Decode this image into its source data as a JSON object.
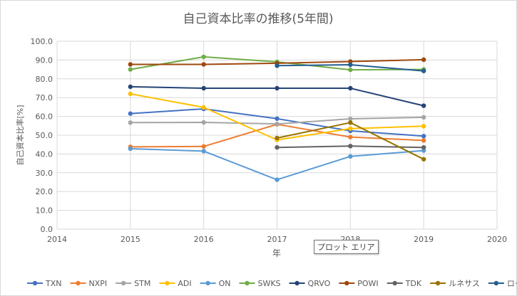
{
  "chart_data": {
    "type": "line",
    "title": "自己資本比率の推移(5年間)",
    "xlabel": "年",
    "ylabel": "自己資本比率[%]",
    "xlim": [
      2014,
      2020
    ],
    "ylim": [
      0,
      100
    ],
    "x_ticks": [
      "2014",
      "2015",
      "2016",
      "2017",
      "2018",
      "2019",
      "2020"
    ],
    "y_ticks": [
      "0.0",
      "10.0",
      "20.0",
      "30.0",
      "40.0",
      "50.0",
      "60.0",
      "70.0",
      "80.0",
      "90.0",
      "100.0"
    ],
    "grid": true,
    "legend_position": "bottom",
    "series": [
      {
        "name": "TXN",
        "color": "#4472c4",
        "x": [
          2015,
          2016,
          2017,
          2018,
          2019
        ],
        "y": [
          61.5,
          64.0,
          58.8,
          52.3,
          49.5
        ]
      },
      {
        "name": "NXPI",
        "color": "#ed7d31",
        "x": [
          2015,
          2016,
          2017,
          2018,
          2019
        ],
        "y": [
          43.8,
          44.0,
          55.8,
          49.0,
          47.2
        ]
      },
      {
        "name": "STM",
        "color": "#a5a5a5",
        "x": [
          2015,
          2016,
          2017,
          2018,
          2019
        ],
        "y": [
          56.7,
          56.8,
          56.0,
          58.7,
          59.5
        ]
      },
      {
        "name": "ADI",
        "color": "#ffc000",
        "x": [
          2015,
          2016,
          2017,
          2018,
          2019
        ],
        "y": [
          72.0,
          64.8,
          47.5,
          53.5,
          54.8
        ]
      },
      {
        "name": "ON",
        "color": "#5b9bd5",
        "x": [
          2015,
          2016,
          2017,
          2018,
          2019
        ],
        "y": [
          42.8,
          41.5,
          26.3,
          38.7,
          41.8
        ]
      },
      {
        "name": "SWKS",
        "color": "#70ad47",
        "x": [
          2015,
          2016,
          2017,
          2018,
          2019
        ],
        "y": [
          85.0,
          91.7,
          89.0,
          84.8,
          85.0
        ]
      },
      {
        "name": "QRVO",
        "color": "#264478",
        "x": [
          2015,
          2016,
          2017,
          2018,
          2019
        ],
        "y": [
          75.8,
          75.0,
          75.0,
          75.0,
          65.7
        ]
      },
      {
        "name": "POWI",
        "color": "#9e480e",
        "x": [
          2015,
          2016,
          2017,
          2018,
          2019
        ],
        "y": [
          87.7,
          87.7,
          88.3,
          89.2,
          90.2
        ]
      },
      {
        "name": "TDK",
        "color": "#636363",
        "x": [
          2017,
          2018,
          2019
        ],
        "y": [
          43.5,
          44.2,
          43.5
        ]
      },
      {
        "name": "ルネサス",
        "color": "#997300",
        "x": [
          2017,
          2018,
          2019
        ],
        "y": [
          48.5,
          56.7,
          37.2
        ]
      },
      {
        "name": "ローム",
        "color": "#255e91",
        "x": [
          2017,
          2018,
          2019
        ],
        "y": [
          87.0,
          87.5,
          84.2
        ]
      }
    ]
  },
  "tooltip": "プロット エリア"
}
